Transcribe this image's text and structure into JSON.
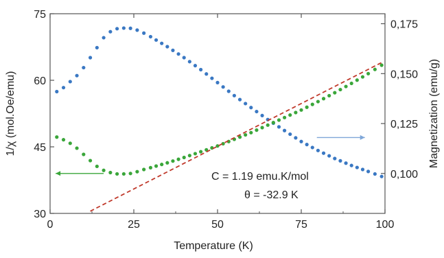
{
  "chart_data": {
    "type": "scatter",
    "xlabel": "Temperature (K)",
    "ylabel_left": "1/χ (mol.Oe/emu)",
    "ylabel_right": "Magnetization (emu/g)",
    "xlim": [
      0,
      100
    ],
    "ylim_left": [
      30,
      75
    ],
    "ylim_right": [
      0.08,
      0.18
    ],
    "x_ticks": [
      "0",
      "25",
      "50",
      "75",
      "100"
    ],
    "y_left_ticks": [
      "30",
      "45",
      "60",
      "75"
    ],
    "y_right_ticks": [
      "0,100",
      "0,125",
      "0,150",
      "0,175"
    ],
    "grid": false,
    "annotations": [
      "C = 1.19 emu.K/mol",
      "θ = -32.9 K"
    ],
    "series": [
      {
        "axis": "right",
        "color": "#3a78c3",
        "marker": "circle",
        "points": [
          [
            2,
            0.141
          ],
          [
            4,
            0.143
          ],
          [
            6,
            0.146
          ],
          [
            8,
            0.149
          ],
          [
            10,
            0.153
          ],
          [
            12,
            0.158
          ],
          [
            14,
            0.163
          ],
          [
            16,
            0.168
          ],
          [
            18,
            0.171
          ],
          [
            20,
            0.1725
          ],
          [
            22,
            0.1728
          ],
          [
            24,
            0.1727
          ],
          [
            26,
            0.1718
          ],
          [
            28,
            0.1703
          ],
          [
            30,
            0.1685
          ],
          [
            35,
            0.1635
          ],
          [
            40,
            0.158
          ],
          [
            45,
            0.152
          ],
          [
            50,
            0.1455
          ],
          [
            55,
            0.139
          ],
          [
            60,
            0.133
          ],
          [
            65,
            0.127
          ],
          [
            70,
            0.1215
          ],
          [
            75,
            0.116
          ],
          [
            80,
            0.1115
          ],
          [
            85,
            0.1075
          ],
          [
            90,
            0.104
          ],
          [
            95,
            0.101
          ],
          [
            99,
            0.0985
          ]
        ]
      },
      {
        "axis": "left",
        "color": "#3aa63a",
        "marker": "circle",
        "points": [
          [
            2,
            47.2
          ],
          [
            4,
            46.6
          ],
          [
            6,
            45.8
          ],
          [
            8,
            44.7
          ],
          [
            10,
            43.3
          ],
          [
            12,
            41.9
          ],
          [
            14,
            40.6
          ],
          [
            16,
            39.7
          ],
          [
            18,
            39.2
          ],
          [
            20,
            38.9
          ],
          [
            22,
            38.9
          ],
          [
            24,
            39.0
          ],
          [
            26,
            39.4
          ],
          [
            28,
            39.9
          ],
          [
            30,
            40.3
          ],
          [
            35,
            41.4
          ],
          [
            40,
            42.6
          ],
          [
            45,
            43.9
          ],
          [
            50,
            45.2
          ],
          [
            55,
            46.7
          ],
          [
            60,
            48.2
          ],
          [
            65,
            49.9
          ],
          [
            70,
            51.6
          ],
          [
            75,
            53.3
          ],
          [
            80,
            55.2
          ],
          [
            85,
            57.2
          ],
          [
            90,
            59.3
          ],
          [
            95,
            61.5
          ],
          [
            99,
            63.4
          ]
        ]
      },
      {
        "axis": "left",
        "type": "line",
        "style": "dashed",
        "color": "#c0392b",
        "points": [
          [
            12,
            30.5
          ],
          [
            99,
            64.0
          ]
        ]
      }
    ],
    "arrows": [
      {
        "points_to": "left",
        "color": "#3aa63a",
        "at": [
          16,
          39.0
        ]
      },
      {
        "points_to": "right",
        "color": "#7ea6d8",
        "at": [
          94,
          0.118
        ]
      }
    ]
  }
}
